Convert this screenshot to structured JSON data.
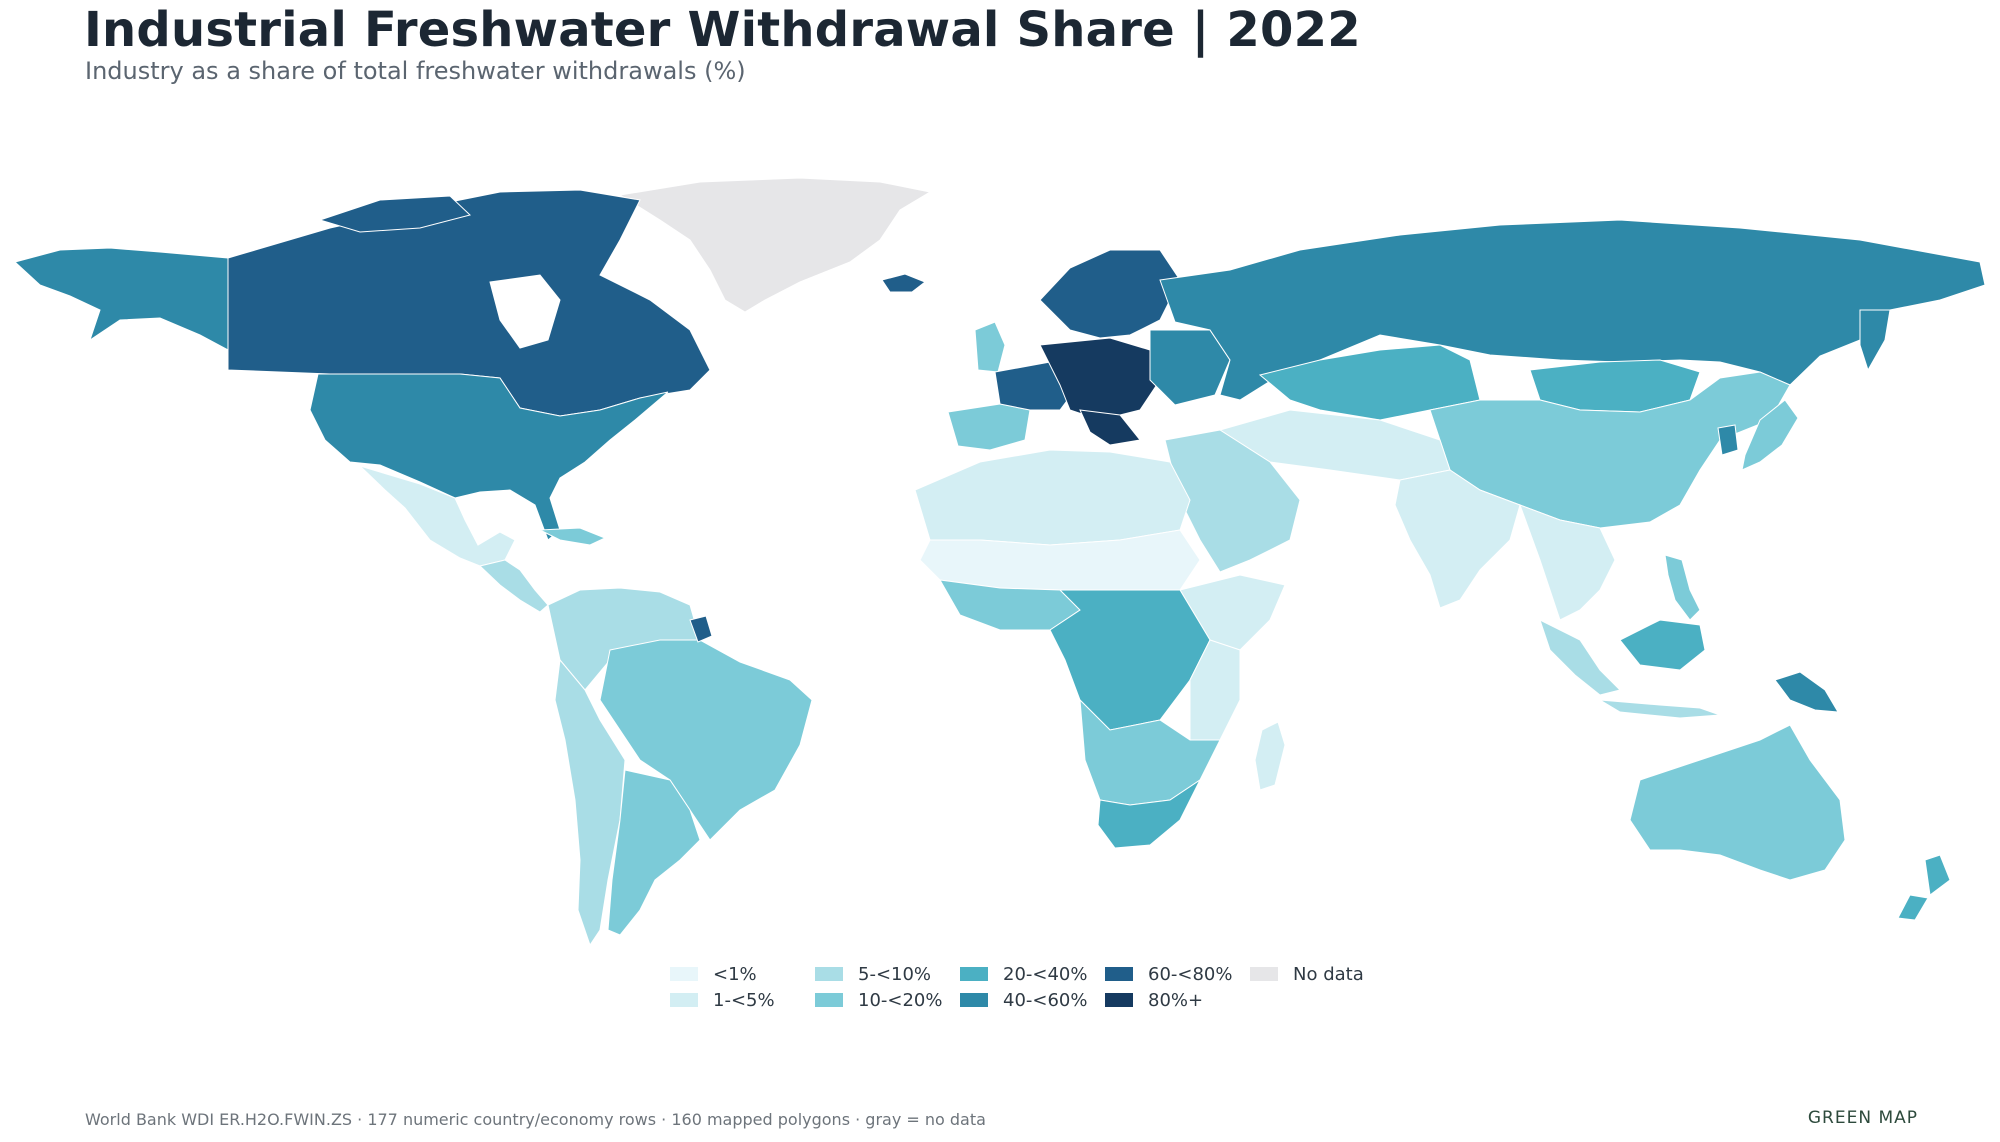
{
  "header": {
    "title": "Industrial Freshwater Withdrawal Share | 2022",
    "subtitle": "Industry as a share of total freshwater withdrawals (%)"
  },
  "palette": {
    "lt1": "#e8f6fa",
    "p1to5": "#d3eef3",
    "p5to10": "#a9dde6",
    "p10to20": "#7ccbd8",
    "p20to40": "#4bb0c3",
    "p40to60": "#2e89a8",
    "p60to80": "#205e8a",
    "p80plus": "#153a60",
    "nodata": "#e6e6e8"
  },
  "legend": {
    "items": [
      {
        "label": "<1%",
        "color_key": "lt1"
      },
      {
        "label": "5-<10%",
        "color_key": "p5to10"
      },
      {
        "label": "20-<40%",
        "color_key": "p20to40"
      },
      {
        "label": "60-<80%",
        "color_key": "p60to80"
      },
      {
        "label": "No data",
        "color_key": "nodata"
      },
      {
        "label": "1-<5%",
        "color_key": "p1to5"
      },
      {
        "label": "10-<20%",
        "color_key": "p10to20"
      },
      {
        "label": "40-<60%",
        "color_key": "p40to60"
      },
      {
        "label": "80%+",
        "color_key": "p80plus"
      }
    ]
  },
  "regions": [
    {
      "name": "canada",
      "bin": "p60to80"
    },
    {
      "name": "alaska",
      "bin": "p40to60"
    },
    {
      "name": "greenland",
      "bin": "nodata"
    },
    {
      "name": "usa",
      "bin": "p40to60"
    },
    {
      "name": "mexico",
      "bin": "p1to5"
    },
    {
      "name": "central-america",
      "bin": "p5to10"
    },
    {
      "name": "caribbean",
      "bin": "p10to20"
    },
    {
      "name": "south-america-north",
      "bin": "p5to10"
    },
    {
      "name": "brazil",
      "bin": "p10to20"
    },
    {
      "name": "suriname",
      "bin": "p60to80"
    },
    {
      "name": "argentina",
      "bin": "p10to20"
    },
    {
      "name": "chile",
      "bin": "p5to10"
    },
    {
      "name": "europe-west",
      "bin": "p60to80"
    },
    {
      "name": "europe-central",
      "bin": "p80plus"
    },
    {
      "name": "iberia",
      "bin": "p10to20"
    },
    {
      "name": "united-kingdom",
      "bin": "p10to20"
    },
    {
      "name": "scandinavia",
      "bin": "p60to80"
    },
    {
      "name": "iceland",
      "bin": "p60to80"
    },
    {
      "name": "russia",
      "bin": "p40to60"
    },
    {
      "name": "kazakhstan",
      "bin": "p20to40"
    },
    {
      "name": "mongolia",
      "bin": "p20to40"
    },
    {
      "name": "china",
      "bin": "p10to20"
    },
    {
      "name": "japan",
      "bin": "p10to20"
    },
    {
      "name": "korea",
      "bin": "p40to60"
    },
    {
      "name": "middle-east",
      "bin": "p5to10"
    },
    {
      "name": "central-asia-south",
      "bin": "p1to5"
    },
    {
      "name": "india",
      "bin": "p1to5"
    },
    {
      "name": "southeast-asia",
      "bin": "p1to5"
    },
    {
      "name": "north-africa",
      "bin": "p1to5"
    },
    {
      "name": "sahel",
      "bin": "lt1"
    },
    {
      "name": "west-africa",
      "bin": "p10to20"
    },
    {
      "name": "central-africa",
      "bin": "p20to40"
    },
    {
      "name": "east-africa",
      "bin": "p1to5"
    },
    {
      "name": "southern-africa",
      "bin": "p10to20"
    },
    {
      "name": "south-africa",
      "bin": "p20to40"
    },
    {
      "name": "madagascar",
      "bin": "p1to5"
    },
    {
      "name": "indonesia",
      "bin": "p5to10"
    },
    {
      "name": "malaysia",
      "bin": "p20to40"
    },
    {
      "name": "philippines",
      "bin": "p10to20"
    },
    {
      "name": "papua-new-guinea",
      "bin": "p40to60"
    },
    {
      "name": "australia",
      "bin": "p10to20"
    },
    {
      "name": "new-zealand",
      "bin": "p20to40"
    }
  ],
  "footer": {
    "source": "World Bank WDI ER.H2O.FWIN.ZS · 177 numeric country/economy rows · 160 mapped polygons · gray = no data",
    "brand": "GREEN MAP"
  }
}
